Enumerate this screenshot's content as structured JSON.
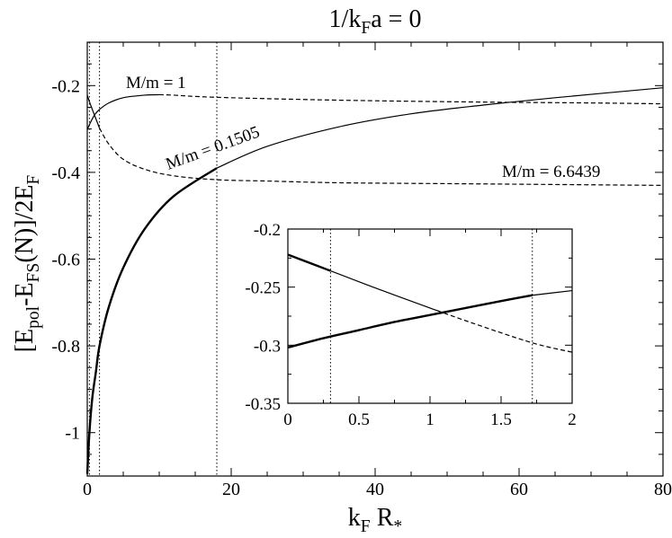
{
  "title": "1/k_F a = 0",
  "chart_data": [
    {
      "type": "line",
      "title": "1/k_F a = 0",
      "xlabel": "k_F R_*",
      "ylabel": "[E_pol-E_FS(N)]/2E_F",
      "xlim": [
        0,
        80
      ],
      "ylim": [
        -1.1,
        -0.1
      ],
      "xticks": [
        0,
        20,
        40,
        60,
        80
      ],
      "xtick_labels": [
        "0",
        "20",
        "40",
        "60",
        "80"
      ],
      "yticks": [
        -1.0,
        -0.8,
        -0.6,
        -0.4,
        -0.2
      ],
      "ytick_labels": [
        "-1",
        "-0.8",
        "-0.6",
        "-0.4",
        "-0.2"
      ],
      "grid": false,
      "vertical_reference_lines": [
        0.3,
        1.7,
        18
      ],
      "annotations": [
        "M/m = 1",
        "M/m = 0.1505",
        "M/m = 6.6439"
      ],
      "series": [
        {
          "name": "M/m = 0.1505",
          "style": "thick-solid-then-thin-solid",
          "x": [
            0,
            0.3,
            0.7,
            1.2,
            1.7,
            3,
            5,
            8,
            12,
            18,
            25,
            35,
            45,
            55,
            65,
            80
          ],
          "y": [
            -1.095,
            -1.0,
            -0.92,
            -0.86,
            -0.8,
            -0.71,
            -0.62,
            -0.53,
            -0.455,
            -0.39,
            -0.34,
            -0.295,
            -0.265,
            -0.245,
            -0.228,
            -0.205
          ]
        },
        {
          "name": "M/m = 1",
          "style": "solid-then-dashed",
          "x": [
            0,
            0.3,
            1,
            1.7,
            3,
            5,
            8,
            10,
            12,
            15,
            20,
            30,
            40,
            55,
            70,
            80
          ],
          "y": [
            -0.302,
            -0.29,
            -0.268,
            -0.255,
            -0.24,
            -0.228,
            -0.222,
            -0.221,
            -0.222,
            -0.225,
            -0.228,
            -0.232,
            -0.235,
            -0.238,
            -0.24,
            -0.242
          ]
        },
        {
          "name": "M/m = 6.6439",
          "style": "thin-solid-then-dashed",
          "x": [
            0,
            0.3,
            1,
            1.7,
            3,
            5,
            8,
            12,
            18,
            25,
            35,
            50,
            65,
            80
          ],
          "y": [
            -0.222,
            -0.237,
            -0.268,
            -0.298,
            -0.335,
            -0.37,
            -0.393,
            -0.408,
            -0.417,
            -0.42,
            -0.424,
            -0.426,
            -0.428,
            -0.43
          ]
        }
      ]
    },
    {
      "type": "line",
      "title": "",
      "xlabel": "",
      "ylabel": "",
      "xlim": [
        0,
        2
      ],
      "ylim": [
        -0.35,
        -0.2
      ],
      "xticks": [
        0,
        0.5,
        1,
        1.5,
        2
      ],
      "xtick_labels": [
        "0",
        "0.5",
        "1",
        "1.5",
        "2"
      ],
      "yticks": [
        -0.35,
        -0.3,
        -0.25,
        -0.2
      ],
      "ytick_labels": [
        "-0.35",
        "-0.3",
        "-0.25",
        "-0.2"
      ],
      "grid": false,
      "vertical_reference_lines": [
        0.3,
        1.72
      ],
      "series": [
        {
          "name": "M/m = 1",
          "style": "thick-solid",
          "x": [
            0,
            0.25,
            0.5,
            0.75,
            1.0,
            1.25,
            1.5,
            1.72,
            2.0
          ],
          "y": [
            -0.302,
            -0.294,
            -0.287,
            -0.28,
            -0.274,
            -0.268,
            -0.262,
            -0.257,
            -0.253
          ]
        },
        {
          "name": "M/m = 6.6439",
          "style": "thick-solid-then-thin-solid-then-dashed",
          "x": [
            0,
            0.3,
            0.6,
            1.0,
            1.3,
            1.72,
            2.0
          ],
          "y": [
            -0.222,
            -0.236,
            -0.25,
            -0.268,
            -0.281,
            -0.298,
            -0.306
          ]
        }
      ]
    }
  ]
}
